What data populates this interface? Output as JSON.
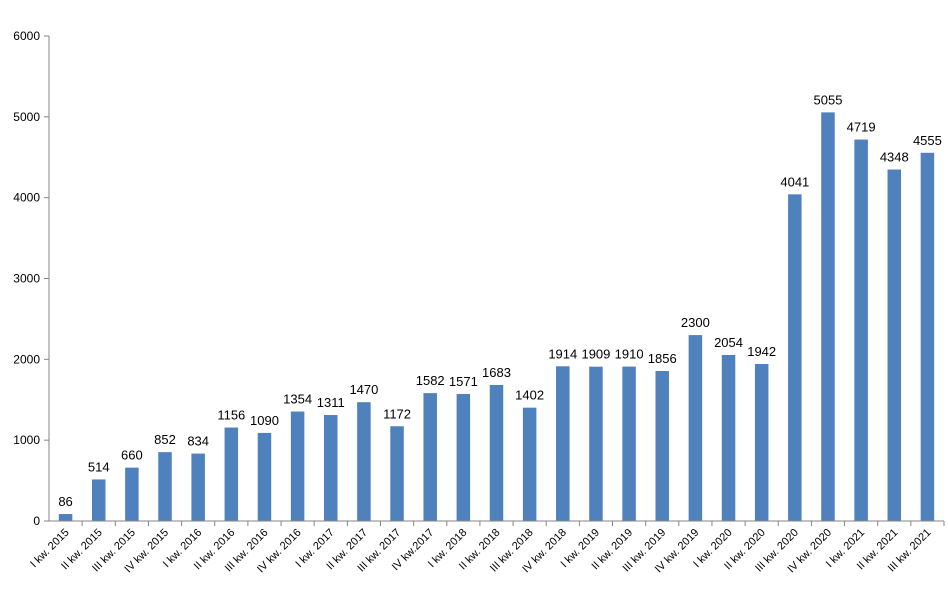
{
  "chart_data": {
    "type": "bar",
    "categories": [
      "I kw. 2015",
      "II kw. 2015",
      "III kw. 2015",
      "IV kw. 2015",
      "I kw. 2016",
      "II kw. 2016",
      "III kw. 2016",
      "IV kw. 2016",
      "I kw. 2017",
      "II kw. 2017",
      "III kw. 2017",
      "IV kw.2017",
      "I kw. 2018",
      "II kw. 2018",
      "III kw. 2018",
      "IV kw. 2018",
      "I kw. 2019",
      "II kw. 2019",
      "III kw. 2019",
      "IV kw. 2019",
      "I kw. 2020",
      "II kw. 2020",
      "III kw. 2020",
      "IV kw. 2020",
      "I kw. 2021",
      "II kw. 2021",
      "III kw. 2021"
    ],
    "values": [
      86,
      514,
      660,
      852,
      834,
      1156,
      1090,
      1354,
      1311,
      1470,
      1172,
      1582,
      1571,
      1683,
      1402,
      1914,
      1909,
      1910,
      1856,
      2300,
      2054,
      1942,
      4041,
      5055,
      4719,
      4348,
      4555
    ],
    "ylim": [
      0,
      6000
    ],
    "yticks": [
      0,
      1000,
      2000,
      3000,
      4000,
      5000,
      6000
    ],
    "title": "",
    "xlabel": "",
    "ylabel": "",
    "grid": false,
    "legend": "none",
    "bar_color": "#4f81bd",
    "axis_color": "#868686"
  }
}
